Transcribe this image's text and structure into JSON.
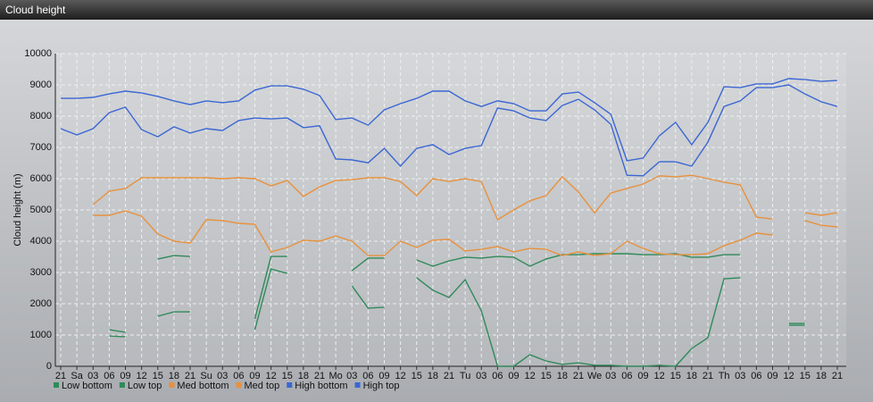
{
  "chart_data": {
    "type": "line",
    "title": "Cloud height",
    "y_label": "Cloud height (m)",
    "categories": [
      "21",
      "Sa",
      "03",
      "06",
      "09",
      "12",
      "15",
      "18",
      "21",
      "Su",
      "03",
      "06",
      "09",
      "12",
      "15",
      "18",
      "21",
      "Mo",
      "03",
      "06",
      "09",
      "12",
      "15",
      "18",
      "21",
      "Tu",
      "03",
      "06",
      "09",
      "12",
      "15",
      "18",
      "21",
      "We",
      "03",
      "06",
      "09",
      "12",
      "15",
      "18",
      "21",
      "Th",
      "03",
      "06",
      "09",
      "12",
      "15",
      "18",
      "21"
    ],
    "ylim": [
      0,
      10000
    ],
    "yticks": [
      0,
      1000,
      2000,
      3000,
      4000,
      5000,
      6000,
      7000,
      8000,
      9000,
      10000
    ],
    "grid": true,
    "series": [
      {
        "name": "Low bottom",
        "color": "#2f8a5a",
        "values": [
          null,
          null,
          null,
          970,
          940,
          null,
          1600,
          1740,
          1740,
          null,
          null,
          null,
          1170,
          3110,
          2970,
          null,
          null,
          null,
          2570,
          1860,
          1890,
          null,
          2830,
          2430,
          2200,
          2770,
          1770,
          0,
          0,
          370,
          170,
          60,
          110,
          30,
          30,
          0,
          0,
          30,
          0,
          570,
          910,
          2800,
          2830,
          null,
          null,
          1310,
          1310,
          null,
          null
        ]
      },
      {
        "name": "Low top",
        "color": "#2f8a5a",
        "values": [
          null,
          null,
          null,
          1170,
          1090,
          null,
          3430,
          3540,
          3510,
          null,
          null,
          null,
          1510,
          3510,
          3510,
          null,
          null,
          null,
          3060,
          3460,
          3460,
          null,
          3400,
          3200,
          3370,
          3490,
          3460,
          3510,
          3490,
          3200,
          3430,
          3570,
          3570,
          3600,
          3600,
          3600,
          3570,
          3570,
          3600,
          3490,
          3490,
          3570,
          3570,
          null,
          null,
          1370,
          1370,
          null,
          null
        ]
      },
      {
        "name": "Med bottom",
        "color": "#e8913c",
        "values": [
          null,
          null,
          4830,
          4830,
          4970,
          4800,
          4230,
          4000,
          3940,
          4690,
          4660,
          4570,
          4540,
          3660,
          3800,
          4030,
          4000,
          4170,
          4000,
          3540,
          3540,
          4000,
          3800,
          4030,
          4060,
          3690,
          3740,
          3830,
          3660,
          3770,
          3740,
          3540,
          3660,
          3540,
          3600,
          4000,
          3770,
          3600,
          3570,
          3570,
          3600,
          3860,
          4030,
          4260,
          4200,
          null,
          4660,
          4510,
          4460
        ]
      },
      {
        "name": "Med top",
        "color": "#e8913c",
        "values": [
          null,
          null,
          5170,
          5600,
          5690,
          6030,
          6030,
          6030,
          6030,
          6030,
          6000,
          6030,
          6000,
          5770,
          5940,
          5430,
          5740,
          5940,
          5970,
          6030,
          6030,
          5910,
          5460,
          6000,
          5910,
          6000,
          5910,
          4690,
          5000,
          5290,
          5460,
          6060,
          5570,
          4910,
          5540,
          5690,
          5830,
          6090,
          6060,
          6110,
          6000,
          5890,
          5800,
          4770,
          4710,
          null,
          4910,
          4830,
          4910
        ]
      },
      {
        "name": "High bottom",
        "color": "#3b66d4",
        "values": [
          7600,
          7400,
          7600,
          8110,
          8290,
          7570,
          7340,
          7660,
          7460,
          7600,
          7540,
          7860,
          7940,
          7910,
          7940,
          7630,
          7690,
          6630,
          6600,
          6510,
          6970,
          6400,
          6970,
          7090,
          6770,
          6970,
          7060,
          8260,
          8170,
          7940,
          7860,
          8340,
          8540,
          8200,
          7740,
          6110,
          6090,
          6540,
          6540,
          6400,
          7170,
          8310,
          8490,
          8910,
          8910,
          9000,
          8710,
          8460,
          8310
        ]
      },
      {
        "name": "High top",
        "color": "#3b66d4",
        "values": [
          8570,
          8570,
          8600,
          8710,
          8800,
          8740,
          8630,
          8490,
          8370,
          8490,
          8430,
          8490,
          8830,
          8970,
          8970,
          8860,
          8660,
          7890,
          7940,
          7710,
          8200,
          8400,
          8570,
          8800,
          8800,
          8490,
          8310,
          8490,
          8400,
          8170,
          8170,
          8710,
          8770,
          8430,
          8060,
          6570,
          6660,
          7370,
          7800,
          7090,
          7800,
          8940,
          8910,
          9030,
          9030,
          9200,
          9170,
          9110,
          9140
        ]
      }
    ]
  }
}
